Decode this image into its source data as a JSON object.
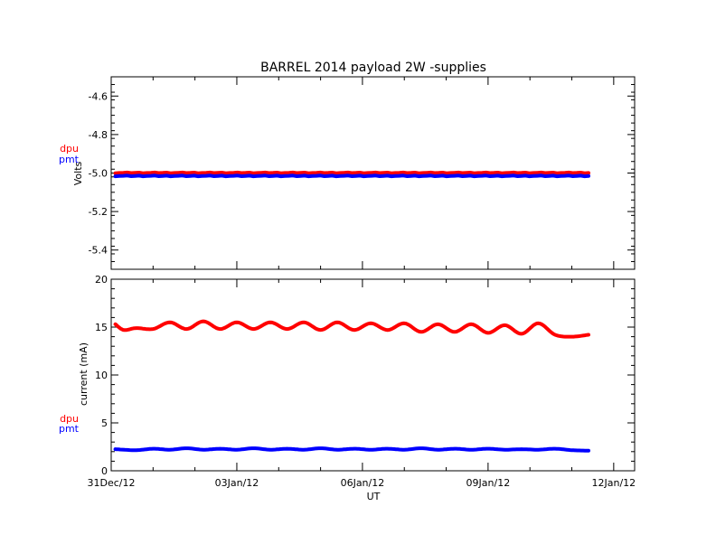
{
  "title": "BARREL 2014 payload 2W -supplies",
  "colors": {
    "dpu": "#ff0000",
    "pmt": "#0000ff",
    "axis": "#000000"
  },
  "chart_data": [
    {
      "type": "line",
      "panel": "top",
      "ylabel": "Volts",
      "ylim": [
        -5.5,
        -4.5
      ],
      "yticks": [
        {
          "v": -4.6,
          "label": "-4.6"
        },
        {
          "v": -4.8,
          "label": "-4.8"
        },
        {
          "v": -5.0,
          "label": "-5.0"
        },
        {
          "v": -5.2,
          "label": "-5.2"
        },
        {
          "v": -5.4,
          "label": "-5.4"
        }
      ],
      "xlim_days": [
        0,
        12.5
      ],
      "series": [
        {
          "name": "dpu",
          "color": "#ff0000",
          "x": [
            0.1,
            11.4
          ],
          "y": [
            -4.999,
            -4.999
          ]
        },
        {
          "name": "pmt",
          "color": "#0000ff",
          "x": [
            0.1,
            11.4
          ],
          "y": [
            -5.015,
            -5.015
          ]
        }
      ]
    },
    {
      "type": "line",
      "panel": "bottom",
      "ylabel": "current (mA)",
      "xlabel": "UT",
      "ylim": [
        0,
        20
      ],
      "yticks": [
        {
          "v": 0,
          "label": "0"
        },
        {
          "v": 5,
          "label": "5"
        },
        {
          "v": 10,
          "label": "10"
        },
        {
          "v": 15,
          "label": "15"
        },
        {
          "v": 20,
          "label": "20"
        }
      ],
      "xticks": [
        {
          "day": 0,
          "label": "31Dec/12"
        },
        {
          "day": 3,
          "label": "03Jan/12"
        },
        {
          "day": 6,
          "label": "06Jan/12"
        },
        {
          "day": 9,
          "label": "09Jan/12"
        },
        {
          "day": 12,
          "label": "12Jan/12"
        }
      ],
      "xlim_days": [
        0,
        12.5
      ],
      "series": [
        {
          "name": "dpu",
          "color": "#ff0000",
          "x": [
            0.1,
            0.3,
            0.6,
            1.0,
            1.4,
            1.8,
            2.2,
            2.6,
            3.0,
            3.4,
            3.8,
            4.2,
            4.6,
            5.0,
            5.4,
            5.8,
            6.2,
            6.6,
            7.0,
            7.4,
            7.8,
            8.2,
            8.6,
            9.0,
            9.4,
            9.8,
            10.2,
            10.6,
            11.0,
            11.4
          ],
          "y": [
            15.3,
            14.7,
            14.9,
            14.8,
            15.5,
            14.8,
            15.6,
            14.8,
            15.5,
            14.8,
            15.5,
            14.8,
            15.5,
            14.7,
            15.5,
            14.7,
            15.4,
            14.7,
            15.4,
            14.5,
            15.3,
            14.5,
            15.3,
            14.4,
            15.2,
            14.3,
            15.4,
            14.2,
            14.0,
            14.2
          ]
        },
        {
          "name": "pmt",
          "color": "#0000ff",
          "x": [
            0.1,
            0.6,
            1.0,
            1.4,
            1.8,
            2.2,
            2.6,
            3.0,
            3.4,
            3.8,
            4.2,
            4.6,
            5.0,
            5.4,
            5.8,
            6.2,
            6.6,
            7.0,
            7.4,
            7.8,
            8.2,
            8.6,
            9.0,
            9.4,
            9.8,
            10.2,
            10.6,
            11.0,
            11.4
          ],
          "y": [
            2.25,
            2.15,
            2.3,
            2.2,
            2.35,
            2.2,
            2.3,
            2.2,
            2.35,
            2.2,
            2.3,
            2.2,
            2.35,
            2.2,
            2.3,
            2.2,
            2.3,
            2.2,
            2.35,
            2.2,
            2.3,
            2.2,
            2.3,
            2.2,
            2.25,
            2.2,
            2.3,
            2.15,
            2.1
          ]
        }
      ]
    }
  ],
  "legend_top": {
    "dpu": "dpu",
    "pmt": "pmt"
  },
  "legend_bottom": {
    "dpu": "dpu",
    "pmt": "pmt"
  }
}
